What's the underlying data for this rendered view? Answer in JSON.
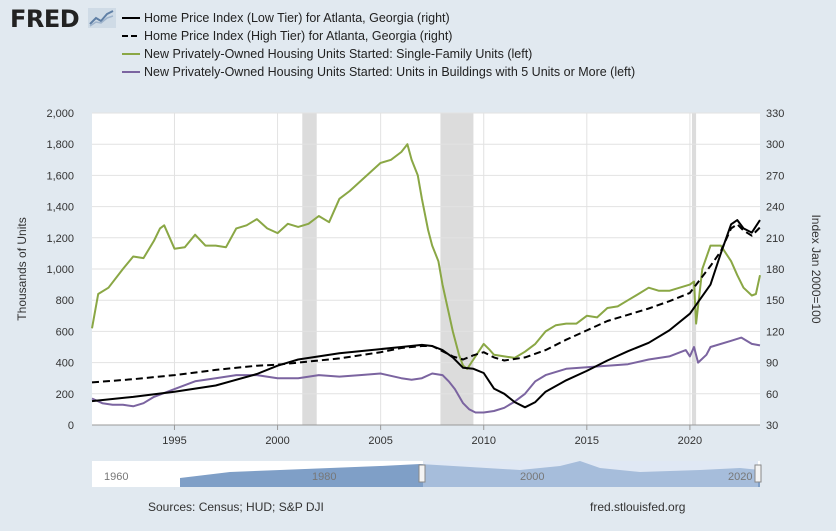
{
  "header": {
    "logo_text": "FRED",
    "logo_icon": "fred-trend-icon"
  },
  "colors": {
    "background": "#e1e9f0",
    "plot_bg": "#ffffff",
    "recession": "#dcdcdc",
    "single_family": "#8aa745",
    "multi_family": "#7b64a0",
    "hpi": "#000000",
    "nav_fill": "#7f9fc7",
    "nav_selected": "#c7d6eb"
  },
  "footer": {
    "sources": "Sources: Census; HUD; S&P DJI",
    "site": "fred.stlouisfed.org"
  },
  "chart_data": {
    "type": "line",
    "title": "",
    "xlabel": "",
    "ylabel": "Thousands of Units",
    "ylabel_right": "Index Jan 2000=100",
    "xlim": [
      1991.0,
      2023.4
    ],
    "ylim": [
      0,
      2000
    ],
    "ylim_right": [
      30,
      330
    ],
    "x_ticks": [
      1995,
      2000,
      2005,
      2010,
      2015,
      2020
    ],
    "y_ticks": [
      0,
      200,
      400,
      600,
      800,
      1000,
      1200,
      1400,
      1600,
      1800,
      2000
    ],
    "y_tick_labels": [
      "0",
      "200",
      "400",
      "600",
      "800",
      "1,000",
      "1,200",
      "1,400",
      "1,600",
      "1,800",
      "2,000"
    ],
    "y_ticks_right": [
      30,
      60,
      90,
      120,
      150,
      180,
      210,
      240,
      270,
      300,
      330
    ],
    "grid": true,
    "legend_position": "top",
    "recessions": [
      [
        2001.2,
        2001.9
      ],
      [
        2007.9,
        2009.5
      ],
      [
        2020.1,
        2020.3
      ]
    ],
    "series": [
      {
        "name": "Home Price Index (Low Tier) for Atlanta, Georgia (right)",
        "axis": "right",
        "style": "solid",
        "color": "#000000",
        "x": [
          1991,
          1993,
          1995,
          1997,
          1999,
          2000,
          2001,
          2003,
          2005,
          2006,
          2007,
          2007.5,
          2008,
          2008.5,
          2009,
          2009.5,
          2010,
          2010.5,
          2011,
          2011.5,
          2012,
          2012.5,
          2013,
          2014,
          2015,
          2016,
          2017,
          2018,
          2019,
          2020,
          2021,
          2021.5,
          2022,
          2022.3,
          2022.6,
          2023,
          2023.4
        ],
        "y": [
          53,
          57,
          62,
          68,
          79,
          87,
          93,
          99,
          103,
          105,
          107,
          106,
          102,
          95,
          85,
          84,
          80,
          65,
          60,
          52,
          47,
          52,
          62,
          73,
          82,
          92,
          101,
          109,
          121,
          137,
          165,
          195,
          223,
          227,
          219,
          215,
          227
        ]
      },
      {
        "name": "Home Price Index (High Tier) for Atlanta, Georgia (right)",
        "axis": "right",
        "style": "dashed",
        "color": "#000000",
        "x": [
          1991,
          1993,
          1995,
          1997,
          1999,
          2000,
          2001,
          2003,
          2005,
          2006,
          2007,
          2007.5,
          2008,
          2008.5,
          2009,
          2009.5,
          2010,
          2010.5,
          2011,
          2012,
          2013,
          2014,
          2015,
          2016,
          2017,
          2018,
          2019,
          2020,
          2021,
          2021.5,
          2022,
          2022.3,
          2022.6,
          2023,
          2023.4
        ],
        "y": [
          71,
          74,
          78,
          83,
          87,
          88,
          90,
          94,
          100,
          104,
          106,
          106,
          101,
          96,
          93,
          97,
          100,
          95,
          92,
          95,
          102,
          112,
          121,
          130,
          136,
          142,
          149,
          157,
          183,
          197,
          219,
          223,
          217,
          212,
          220
        ]
      },
      {
        "name": "New Privately-Owned Housing Units Started: Single-Family Units (left)",
        "axis": "left",
        "style": "solid",
        "color": "#8aa745",
        "x": [
          1991,
          1991.3,
          1991.8,
          1992.5,
          1993,
          1993.5,
          1994,
          1994.3,
          1994.5,
          1995,
          1995.5,
          1996,
          1996.5,
          1997,
          1997.5,
          1998,
          1998.5,
          1999,
          1999.5,
          2000,
          2000.5,
          2001,
          2001.5,
          2002,
          2002.5,
          2003,
          2003.5,
          2004,
          2004.5,
          2005,
          2005.5,
          2006,
          2006.3,
          2006.5,
          2006.8,
          2007,
          2007.3,
          2007.5,
          2007.8,
          2008,
          2008.3,
          2008.5,
          2008.8,
          2009,
          2009.2,
          2009.5,
          2010,
          2010.3,
          2010.5,
          2011,
          2011.5,
          2012,
          2012.5,
          2013,
          2013.5,
          2014,
          2014.5,
          2015,
          2015.5,
          2016,
          2016.5,
          2017,
          2017.5,
          2018,
          2018.5,
          2019,
          2019.5,
          2020,
          2020.2,
          2020.3,
          2020.6,
          2021,
          2021.5,
          2022,
          2022.3,
          2022.6,
          2023,
          2023.2,
          2023.4
        ],
        "y": [
          620,
          840,
          880,
          1000,
          1080,
          1070,
          1180,
          1260,
          1280,
          1130,
          1140,
          1220,
          1150,
          1150,
          1140,
          1260,
          1280,
          1320,
          1260,
          1230,
          1290,
          1270,
          1290,
          1340,
          1300,
          1450,
          1500,
          1560,
          1620,
          1680,
          1700,
          1750,
          1800,
          1700,
          1600,
          1450,
          1250,
          1150,
          1050,
          900,
          720,
          600,
          450,
          380,
          360,
          420,
          520,
          480,
          450,
          440,
          430,
          470,
          520,
          600,
          640,
          650,
          650,
          700,
          690,
          750,
          760,
          800,
          840,
          880,
          860,
          860,
          880,
          900,
          920,
          650,
          1000,
          1150,
          1150,
          1050,
          960,
          880,
          830,
          840,
          960
        ]
      },
      {
        "name": "New Privately-Owned Housing Units Started: Units in Buildings with 5 Units or More (left)",
        "axis": "left",
        "style": "solid",
        "color": "#7b64a0",
        "x": [
          1991,
          1991.5,
          1992,
          1992.5,
          1993,
          1993.5,
          1994,
          1995,
          1996,
          1997,
          1998,
          1999,
          2000,
          2001,
          2002,
          2003,
          2004,
          2005,
          2006,
          2006.5,
          2007,
          2007.5,
          2008,
          2008.3,
          2008.6,
          2009,
          2009.3,
          2009.6,
          2010,
          2010.5,
          2011,
          2011.5,
          2012,
          2012.5,
          2013,
          2014,
          2015,
          2016,
          2017,
          2018,
          2019,
          2019.8,
          2020,
          2020.2,
          2020.4,
          2020.8,
          2021,
          2022,
          2022.5,
          2023,
          2023.4
        ],
        "y": [
          170,
          140,
          130,
          130,
          120,
          140,
          180,
          230,
          280,
          300,
          320,
          320,
          300,
          300,
          320,
          310,
          320,
          330,
          300,
          290,
          300,
          330,
          320,
          280,
          230,
          140,
          100,
          80,
          80,
          90,
          110,
          150,
          200,
          280,
          320,
          360,
          370,
          380,
          390,
          420,
          440,
          480,
          440,
          500,
          400,
          450,
          500,
          540,
          560,
          520,
          510
        ]
      }
    ]
  }
}
